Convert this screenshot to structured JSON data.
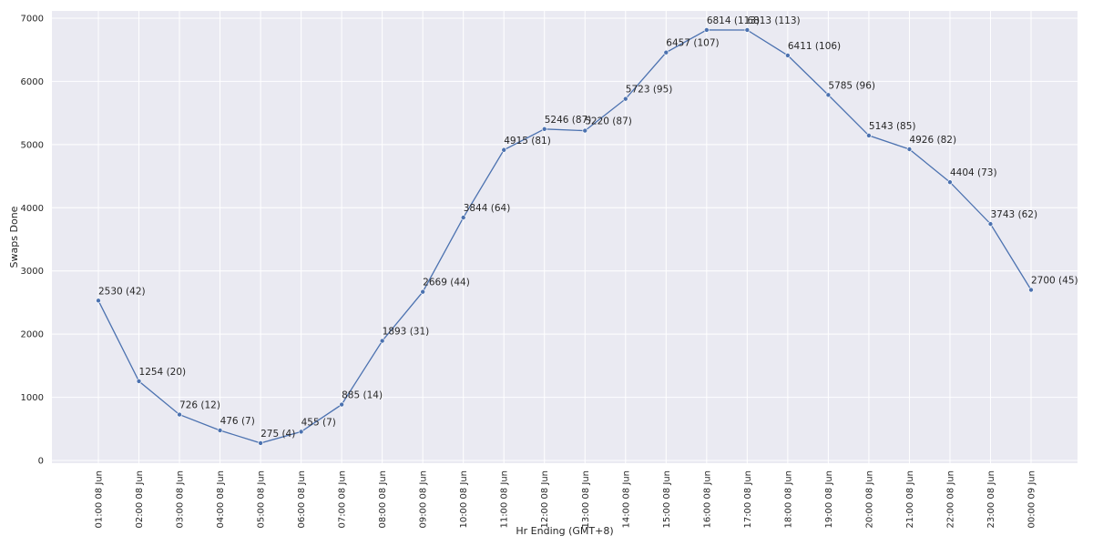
{
  "chart_data": {
    "type": "line",
    "title": "",
    "xlabel": "Hr Ending (GMT+8)",
    "ylabel": "Swaps Done",
    "ylim": [
      0,
      7000
    ],
    "yticks": [
      0,
      1000,
      2000,
      3000,
      4000,
      5000,
      6000,
      7000
    ],
    "grid": true,
    "line_color": "#4c72b0",
    "background_color": "#eaeaf2",
    "categories": [
      "01:00 08 Jun",
      "02:00 08 Jun",
      "03:00 08 Jun",
      "04:00 08 Jun",
      "05:00 08 Jun",
      "06:00 08 Jun",
      "07:00 08 Jun",
      "08:00 08 Jun",
      "09:00 08 Jun",
      "10:00 08 Jun",
      "11:00 08 Jun",
      "12:00 08 Jun",
      "13:00 08 Jun",
      "14:00 08 Jun",
      "15:00 08 Jun",
      "16:00 08 Jun",
      "17:00 08 Jun",
      "18:00 08 Jun",
      "19:00 08 Jun",
      "20:00 08 Jun",
      "21:00 08 Jun",
      "22:00 08 Jun",
      "23:00 08 Jun",
      "00:00 09 Jun"
    ],
    "values": [
      2530,
      1254,
      726,
      476,
      275,
      455,
      885,
      1893,
      2669,
      3844,
      4915,
      5246,
      5220,
      5723,
      6457,
      6814,
      6813,
      6411,
      5785,
      5143,
      4926,
      4404,
      3743,
      2700
    ],
    "data_labels": [
      "2530 (42)",
      "1254 (20)",
      "726 (12)",
      "476 (7)",
      "275 (4)",
      "455 (7)",
      "885 (14)",
      "1893 (31)",
      "2669 (44)",
      "3844 (64)",
      "4915 (81)",
      "5246 (87)",
      "5220 (87)",
      "5723 (95)",
      "6457 (107)",
      "6814 (113)",
      "6813 (113)",
      "6411 (106)",
      "5785 (96)",
      "5143 (85)",
      "4926 (82)",
      "4404 (73)",
      "3743 (62)",
      "2700 (45)"
    ]
  }
}
